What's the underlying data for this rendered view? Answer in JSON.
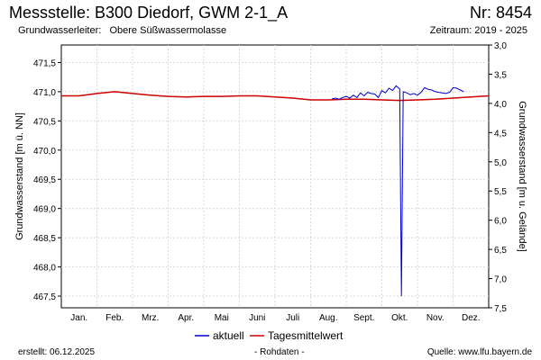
{
  "header": {
    "title": "Messstelle: B300 Diedorf, GWM 2-1_A",
    "number": "Nr: 8454",
    "aquifer": "Grundwasserleiter:   Obere Süßwassermolasse",
    "period": "Zeitraum: 2019 - 2025"
  },
  "footer": {
    "created": "erstellt:  06.12.2025",
    "raw": "- Rohdaten -",
    "source": "Quelle:  www.lfu.bayern.de"
  },
  "colors": {
    "aktuell": "#0000cc",
    "tagesmittel": "#cc0000",
    "grid": "#d8d8d8"
  },
  "chart_data": {
    "type": "line",
    "x_ticks": [
      "Jan.",
      "Feb.",
      "Mrz.",
      "Apr.",
      "Mai",
      "Juni",
      "Juli",
      "Aug.",
      "Sept.",
      "Okt.",
      "Nov.",
      "Dez."
    ],
    "ylabel": "Grundwasserstand [m ü. NN]",
    "ylim": [
      467.3,
      471.8
    ],
    "y_ticks": [
      "471,5",
      "471,0",
      "470,5",
      "470,0",
      "469,5",
      "469,0",
      "468,5",
      "468,0",
      "467,5"
    ],
    "y_tick_values": [
      471.5,
      471.0,
      470.5,
      470.0,
      469.5,
      469.0,
      468.5,
      468.0,
      467.5
    ],
    "y2label": "Grundwasserstand [m u. Gelände]",
    "y2lim": [
      3.0,
      7.5
    ],
    "y2_ticks": [
      "3,0",
      "3,5",
      "4,0",
      "4,5",
      "5,0",
      "5,5",
      "6,0",
      "6,5",
      "7,0",
      "7,5"
    ],
    "y2_tick_values": [
      3.0,
      3.5,
      4.0,
      4.5,
      5.0,
      5.5,
      6.0,
      6.5,
      7.0,
      7.5
    ],
    "grid": true,
    "legend_position": "bottom-center",
    "series": [
      {
        "name": "aktuell",
        "x": [
          7.6,
          7.7,
          7.8,
          7.9,
          8.0,
          8.1,
          8.2,
          8.3,
          8.4,
          8.5,
          8.6,
          8.7,
          8.8,
          8.9,
          9.0,
          9.1,
          9.2,
          9.3,
          9.4,
          9.5,
          9.55,
          9.6,
          9.7,
          9.8,
          9.9,
          10.0,
          10.1,
          10.2,
          10.3,
          10.4,
          10.5,
          10.6,
          10.7,
          10.8,
          10.9,
          11.0,
          11.1,
          11.2,
          11.3
        ],
        "y": [
          470.88,
          470.89,
          470.87,
          470.9,
          470.92,
          470.89,
          470.94,
          470.9,
          470.98,
          470.93,
          470.99,
          470.97,
          470.96,
          470.9,
          471.02,
          470.98,
          471.06,
          471.02,
          471.1,
          471.05,
          467.5,
          471.0,
          470.98,
          470.95,
          470.97,
          470.94,
          470.99,
          471.07,
          471.04,
          471.03,
          471.0,
          470.99,
          470.98,
          470.97,
          470.99,
          471.07,
          471.06,
          471.03,
          471.0
        ]
      },
      {
        "name": "Tagesmittelwert",
        "x": [
          0,
          0.5,
          1.0,
          1.5,
          2.0,
          2.5,
          3.0,
          3.5,
          4.0,
          4.5,
          5.0,
          5.5,
          6.0,
          6.5,
          7.0,
          7.5,
          8.0,
          8.5,
          9.0,
          9.5,
          10.0,
          10.5,
          11.0,
          11.5,
          12.0
        ],
        "y": [
          470.93,
          470.93,
          470.97,
          471.0,
          470.97,
          470.94,
          470.92,
          470.91,
          470.92,
          470.92,
          470.93,
          470.93,
          470.91,
          470.89,
          470.86,
          470.86,
          470.87,
          470.87,
          470.86,
          470.85,
          470.86,
          470.87,
          470.89,
          470.91,
          470.93
        ]
      }
    ]
  }
}
